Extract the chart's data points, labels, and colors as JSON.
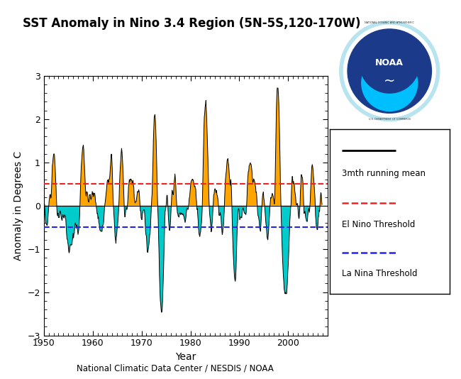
{
  "title": "SST Anomaly in Nino 3.4 Region (5N-5S,120-170W)",
  "xlabel": "Year",
  "ylabel": "Anomaly in Degrees C",
  "footer": "National Climatic Data Center / NESDIS / NOAA",
  "el_nino_threshold": 0.5,
  "la_nina_threshold": -0.5,
  "ylim": [
    -3.0,
    3.0
  ],
  "xlim": [
    1950,
    2008
  ],
  "legend_line_label": "3mth running mean",
  "legend_el_nino_label": "El Nino Threshold",
  "legend_la_nina_label": "La Nina Threshold",
  "el_nino_color": "#EE2222",
  "la_nina_color": "#2222EE",
  "fill_positive_color": "#FFA500",
  "fill_negative_color": "#00CCCC",
  "line_color": "#000000",
  "background_color": "#FFFFFF",
  "yticks": [
    -3.0,
    -2.0,
    -1.0,
    0.0,
    1.0,
    2.0,
    3.0
  ],
  "xticks": [
    1950,
    1960,
    1970,
    1980,
    1990,
    2000
  ],
  "noaa_outer_color": "#87CEEB",
  "noaa_inner_color": "#1B3B8A",
  "noaa_wave_color": "#00BFFF"
}
